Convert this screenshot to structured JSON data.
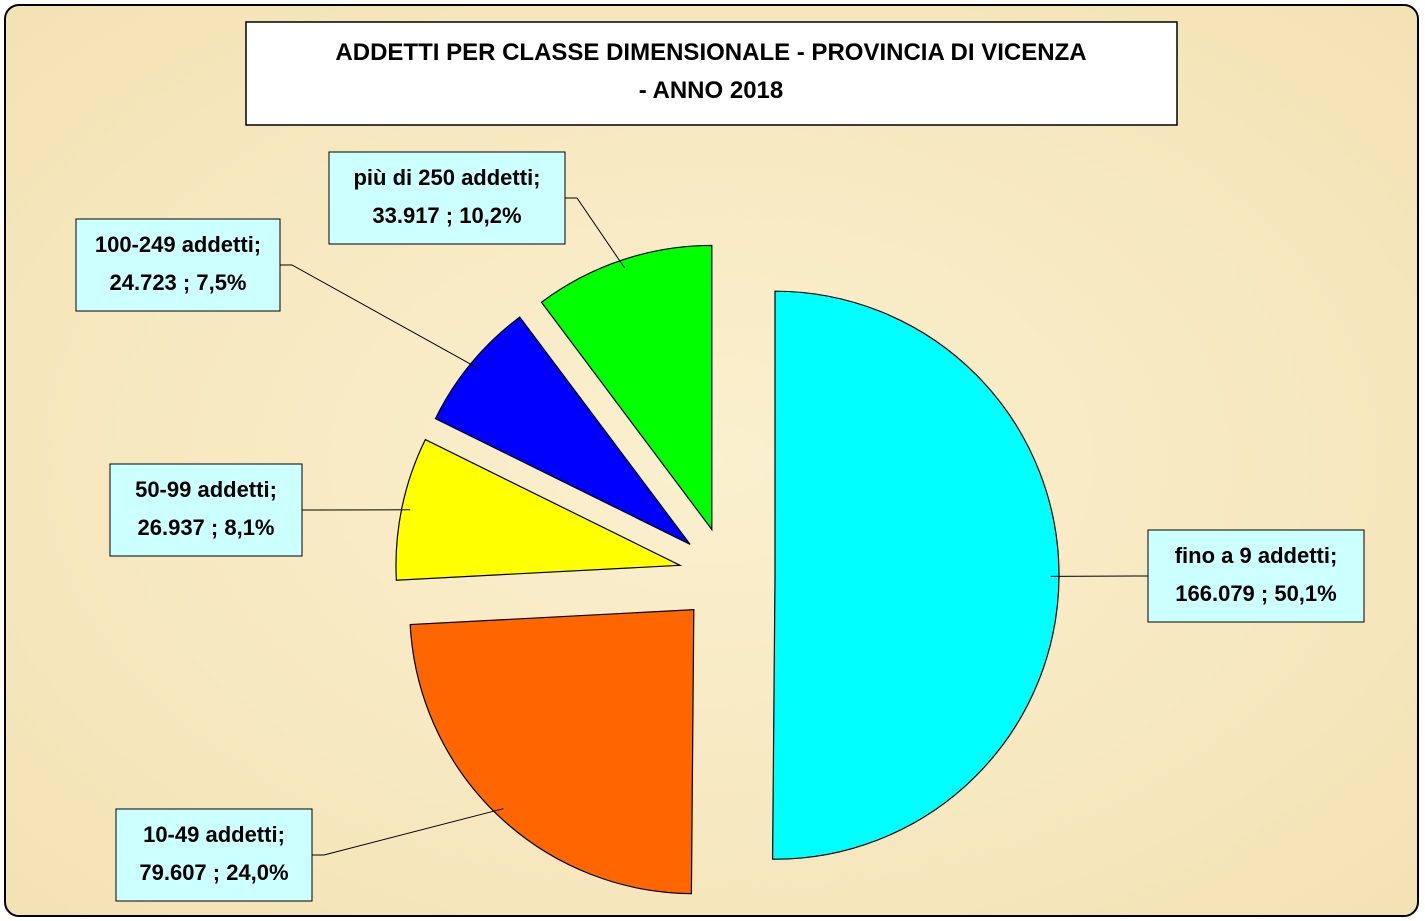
{
  "chart_data": {
    "type": "pie",
    "title": "ADDETTI PER CLASSE DIMENSIONALE - PROVINCIA DI VICENZA - ANNO 2018",
    "categories": [
      "fino a 9 addetti;",
      "10-49 addetti;",
      "50-99 addetti;",
      "100-249 addetti;",
      "più di 250 addetti;"
    ],
    "values": [
      166079,
      79607,
      26937,
      24723,
      33917
    ],
    "value_labels": [
      "166.079 ; 50,1%",
      "79.607 ; 24,0%",
      "26.937 ; 8,1%",
      "24.723 ; 7,5%",
      "33.917 ; 10,2%"
    ],
    "colors": [
      "#00ffff",
      "#ff6600",
      "#ffff00",
      "#0000ff",
      "#00ff00"
    ]
  }
}
